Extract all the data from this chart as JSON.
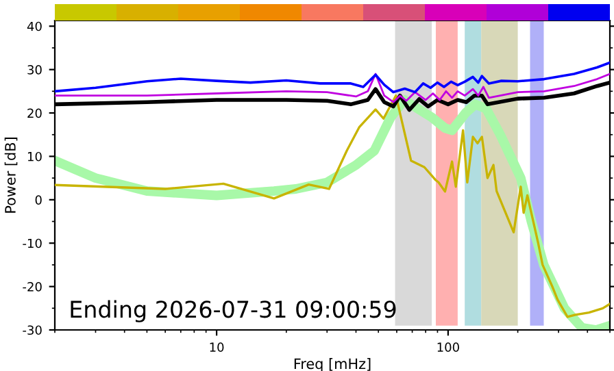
{
  "chart_data": {
    "type": "line",
    "xlabel": "Freq [mHz]",
    "ylabel": "Power [dB]",
    "log": "x",
    "xlim": [
      2,
      500
    ],
    "xticks": [
      10,
      100
    ],
    "ylim": [
      -30,
      41.3
    ],
    "yticks": [
      -30,
      -20,
      -10,
      0,
      10,
      20,
      30,
      40
    ],
    "grid": false,
    "legend": false,
    "marker": "none",
    "line_style": "solid",
    "bands": [
      {
        "axis": "x",
        "from": 59,
        "to": 85,
        "color": "#d9d9d9"
      },
      {
        "axis": "x",
        "from": 88.5,
        "to": 110,
        "color": "#ffb0b0"
      },
      {
        "axis": "x",
        "from": 118,
        "to": 139,
        "color": "#b0dde0"
      },
      {
        "axis": "x",
        "from": 139,
        "to": 200,
        "color": "#d8d8b8"
      },
      {
        "axis": "x",
        "from": 226,
        "to": 259,
        "color": "#b0b0f8"
      }
    ],
    "series": [
      {
        "color": "#a8f8a8",
        "x": [
          2,
          3,
          5,
          10,
          17.7,
          22,
          30,
          40,
          48,
          56.5,
          64.7,
          69,
          85,
          97,
          104,
          119,
          131,
          146,
          168,
          206,
          229,
          259,
          318,
          379,
          436,
          500
        ],
        "values": [
          9,
          5,
          2,
          1,
          2,
          2.5,
          4,
          8,
          11.3,
          19,
          23,
          22,
          19,
          16.5,
          16,
          20,
          22,
          21,
          15,
          5,
          -5,
          -15,
          -25,
          -29.5,
          -30,
          -29
        ]
      },
      {
        "color": "#c8b400",
        "x": [
          2,
          6,
          10.7,
          17.7,
          25,
          30.6,
          36.5,
          41.3,
          48.6,
          52.6,
          59.5,
          69.2,
          79,
          88.5,
          91,
          97,
          104,
          108,
          116,
          121,
          128,
          134,
          140,
          148,
          157,
          162,
          192,
          206,
          212,
          220,
          245,
          256,
          282,
          297,
          328,
          355,
          406,
          466,
          500
        ],
        "values": [
          3.4,
          2.5,
          3.7,
          0.3,
          3.5,
          2.5,
          11.3,
          16.7,
          20.8,
          18.7,
          24,
          9,
          7.5,
          4.5,
          4,
          1.9,
          8.8,
          3,
          16,
          4,
          14.5,
          13,
          14.5,
          5,
          8,
          2,
          -7.5,
          3,
          -3,
          1,
          -10,
          -15,
          -20,
          -23,
          -27,
          -26.5,
          -26,
          -25,
          -24
        ]
      },
      {
        "color": "#000000",
        "x": [
          2,
          5,
          10,
          20,
          30,
          38,
          45,
          48.6,
          53,
          58,
          62,
          68,
          75,
          82,
          90,
          100,
          110,
          120,
          130,
          140,
          148,
          200,
          260,
          350,
          440,
          500
        ],
        "values": [
          22,
          22.5,
          23,
          23,
          22.8,
          22,
          23,
          25.5,
          22.5,
          21.5,
          24,
          20.7,
          23.2,
          21.5,
          23,
          22,
          23,
          22.5,
          24,
          24,
          22,
          23.3,
          23.5,
          24.5,
          26.2,
          27
        ]
      },
      {
        "color": "#c000e0",
        "x": [
          2,
          5,
          10,
          20,
          30,
          40,
          45,
          48.6,
          53,
          58,
          62,
          66,
          72,
          80,
          86,
          92,
          98,
          104,
          110,
          118,
          128,
          135,
          142,
          150,
          200,
          260,
          350,
          440,
          500
        ],
        "values": [
          24,
          24,
          24.5,
          25,
          24.8,
          23.8,
          25,
          29,
          24,
          22.5,
          24,
          22.8,
          24.8,
          23,
          24.5,
          23,
          25,
          23.5,
          25,
          24,
          25.5,
          24,
          26,
          23.5,
          24.8,
          25,
          26.2,
          27.8,
          29
        ]
      },
      {
        "color": "#0000ff",
        "x": [
          2,
          3,
          5,
          7,
          10,
          14,
          20,
          28,
          38,
          43,
          48.6,
          53,
          58,
          65,
          72,
          78,
          84,
          90,
          96,
          103,
          110,
          118,
          128,
          135,
          140,
          150,
          170,
          200,
          260,
          350,
          440,
          500
        ],
        "values": [
          25,
          25.8,
          27.3,
          27.9,
          27.4,
          27,
          27.5,
          26.8,
          26.8,
          26,
          28.8,
          26.5,
          24.8,
          25.6,
          24.8,
          26.8,
          25.8,
          27,
          26,
          27.2,
          26.4,
          27.2,
          28.3,
          27,
          28.5,
          26.8,
          27.4,
          27.3,
          27.8,
          29,
          30.5,
          31.6
        ]
      }
    ],
    "annotations": [
      "Ending 2026-07-31 09:00:59"
    ]
  }
}
